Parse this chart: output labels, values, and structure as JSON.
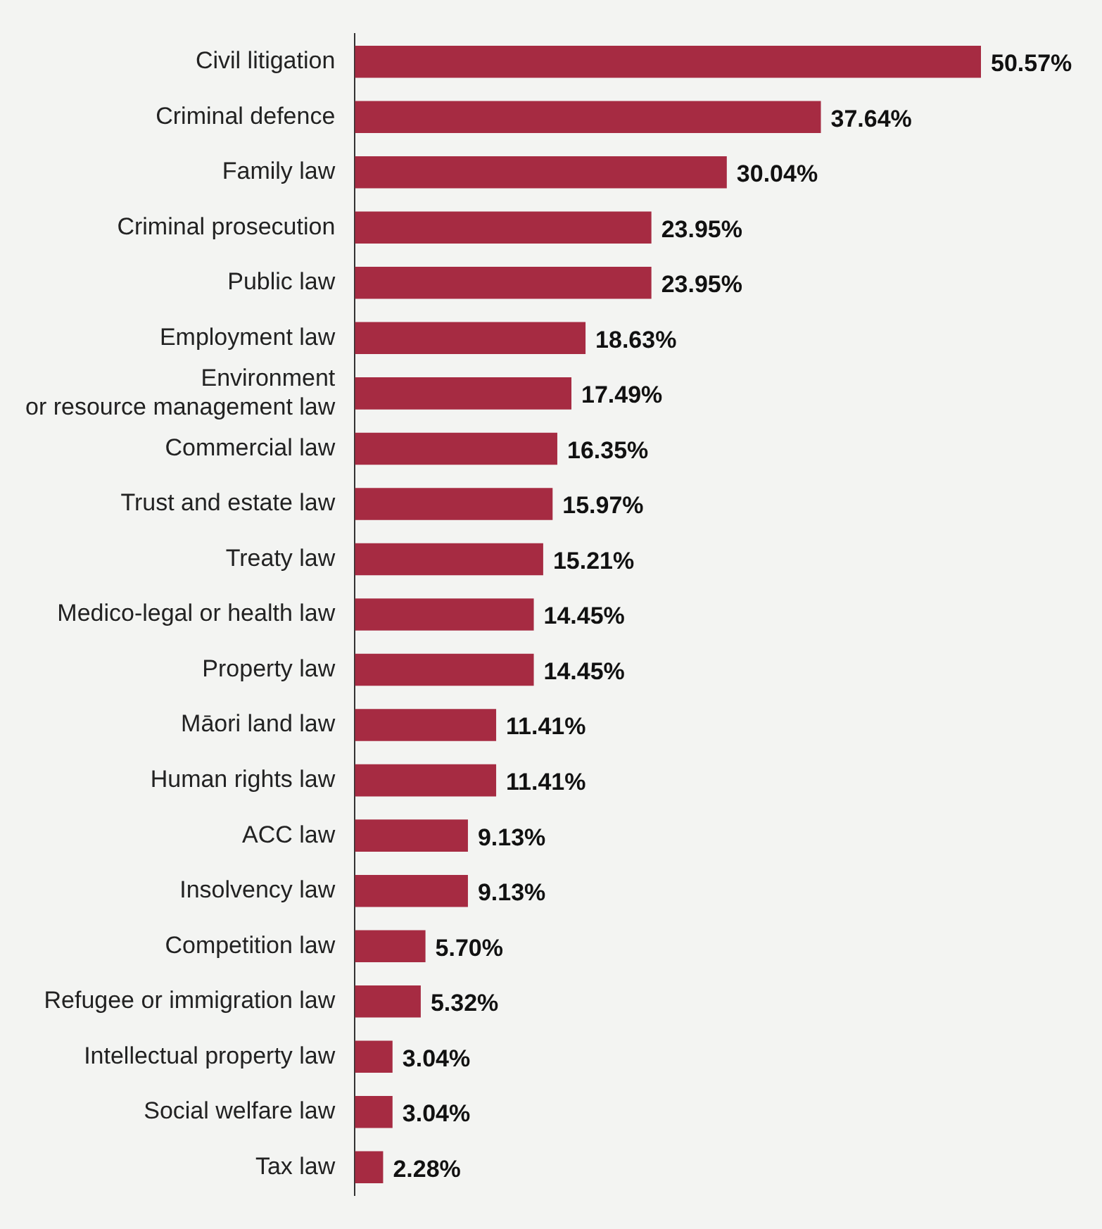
{
  "chart_data": {
    "type": "bar",
    "orientation": "horizontal",
    "color": "#a62b42",
    "categories": [
      "Civil litigation",
      "Criminal defence",
      "Family law",
      "Criminal prosecution",
      "Public law",
      "Employment law",
      "Environment or resource management law",
      "Commercial law",
      "Trust and estate law",
      "Treaty law",
      "Medico-legal or health law",
      "Property law",
      "Māori land law",
      "Human rights law",
      "ACC law",
      "Insolvency law",
      "Competition law",
      "Refugee or immigration law",
      "Intellectual property law",
      "Social welfare law",
      "Tax law"
    ],
    "values": [
      50.57,
      37.64,
      30.04,
      23.95,
      23.95,
      18.63,
      17.49,
      16.35,
      15.97,
      15.21,
      14.45,
      14.45,
      11.41,
      11.41,
      9.13,
      9.13,
      5.7,
      5.32,
      3.04,
      3.04,
      2.28
    ],
    "value_labels": [
      "50.57%",
      "37.64%",
      "30.04%",
      "23.95%",
      "23.95%",
      "18.63%",
      "17.49%",
      "16.35%",
      "15.97%",
      "15.21%",
      "14.45%",
      "14.45%",
      "11.41%",
      "11.41%",
      "9.13%",
      "9.13%",
      "5.70%",
      "5.32%",
      "3.04%",
      "3.04%",
      "2.28%"
    ]
  }
}
